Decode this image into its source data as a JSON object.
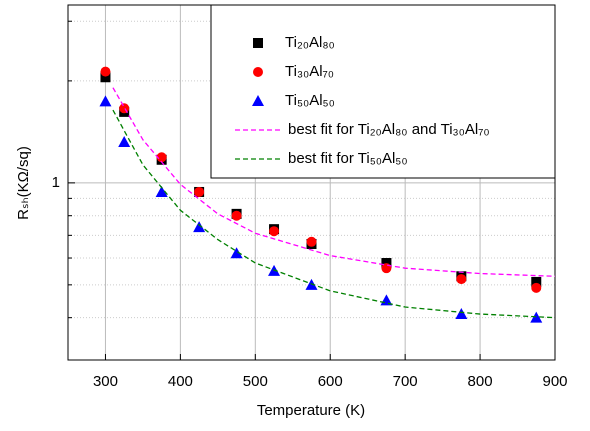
{
  "chart_data": {
    "type": "scatter",
    "x_label": "Temperature (K)",
    "y_label": "Rₛₕ(KΩ/sq)",
    "xlim": [
      250,
      900
    ],
    "xticks": [
      300,
      400,
      500,
      600,
      700,
      800,
      900
    ],
    "ylim": [
      0.3,
      3.35
    ],
    "yticks": [
      1
    ],
    "y_log": true,
    "minor_yticks": [
      0.4,
      0.5,
      0.6,
      0.7,
      0.8,
      0.9,
      2,
      3
    ],
    "grid": true,
    "legend": "upper right",
    "series": [
      {
        "name": "Ti₂₀Al₈₀",
        "color": "#000000",
        "marker": "square",
        "x": [
          300,
          325,
          375,
          425,
          475,
          525,
          575,
          675,
          775,
          875
        ],
        "values": [
          2.05,
          1.62,
          1.17,
          0.94,
          0.81,
          0.73,
          0.66,
          0.58,
          0.53,
          0.51
        ]
      },
      {
        "name": "Ti₃₀Al₇₀",
        "color": "#ff0000",
        "marker": "circle",
        "x": [
          300,
          325,
          375,
          425,
          475,
          525,
          575,
          675,
          775,
          875
        ],
        "values": [
          2.13,
          1.66,
          1.19,
          0.94,
          0.8,
          0.72,
          0.67,
          0.56,
          0.52,
          0.49
        ]
      },
      {
        "name": "Ti₅₀Al₅₀",
        "color": "#0000ff",
        "marker": "triangle",
        "x": [
          300,
          325,
          375,
          425,
          475,
          525,
          575,
          675,
          775,
          875
        ],
        "values": [
          1.74,
          1.32,
          0.94,
          0.74,
          0.62,
          0.55,
          0.5,
          0.45,
          0.41,
          0.4
        ]
      },
      {
        "name": "best fit for Ti₂₀Al₈₀ and Ti₃₀Al₇₀",
        "color": "#ff00ff",
        "line": "dashed",
        "x": [
          310,
          350,
          400,
          450,
          500,
          600,
          700,
          800,
          900
        ],
        "values": [
          1.91,
          1.34,
          0.99,
          0.81,
          0.71,
          0.61,
          0.56,
          0.54,
          0.53
        ]
      },
      {
        "name": "best fit for Ti₅₀Al₅₀",
        "color": "#008000",
        "line": "dashed",
        "x": [
          310,
          350,
          400,
          450,
          500,
          600,
          700,
          800,
          900
        ],
        "values": [
          1.64,
          1.13,
          0.83,
          0.68,
          0.58,
          0.48,
          0.43,
          0.41,
          0.4
        ]
      }
    ]
  }
}
